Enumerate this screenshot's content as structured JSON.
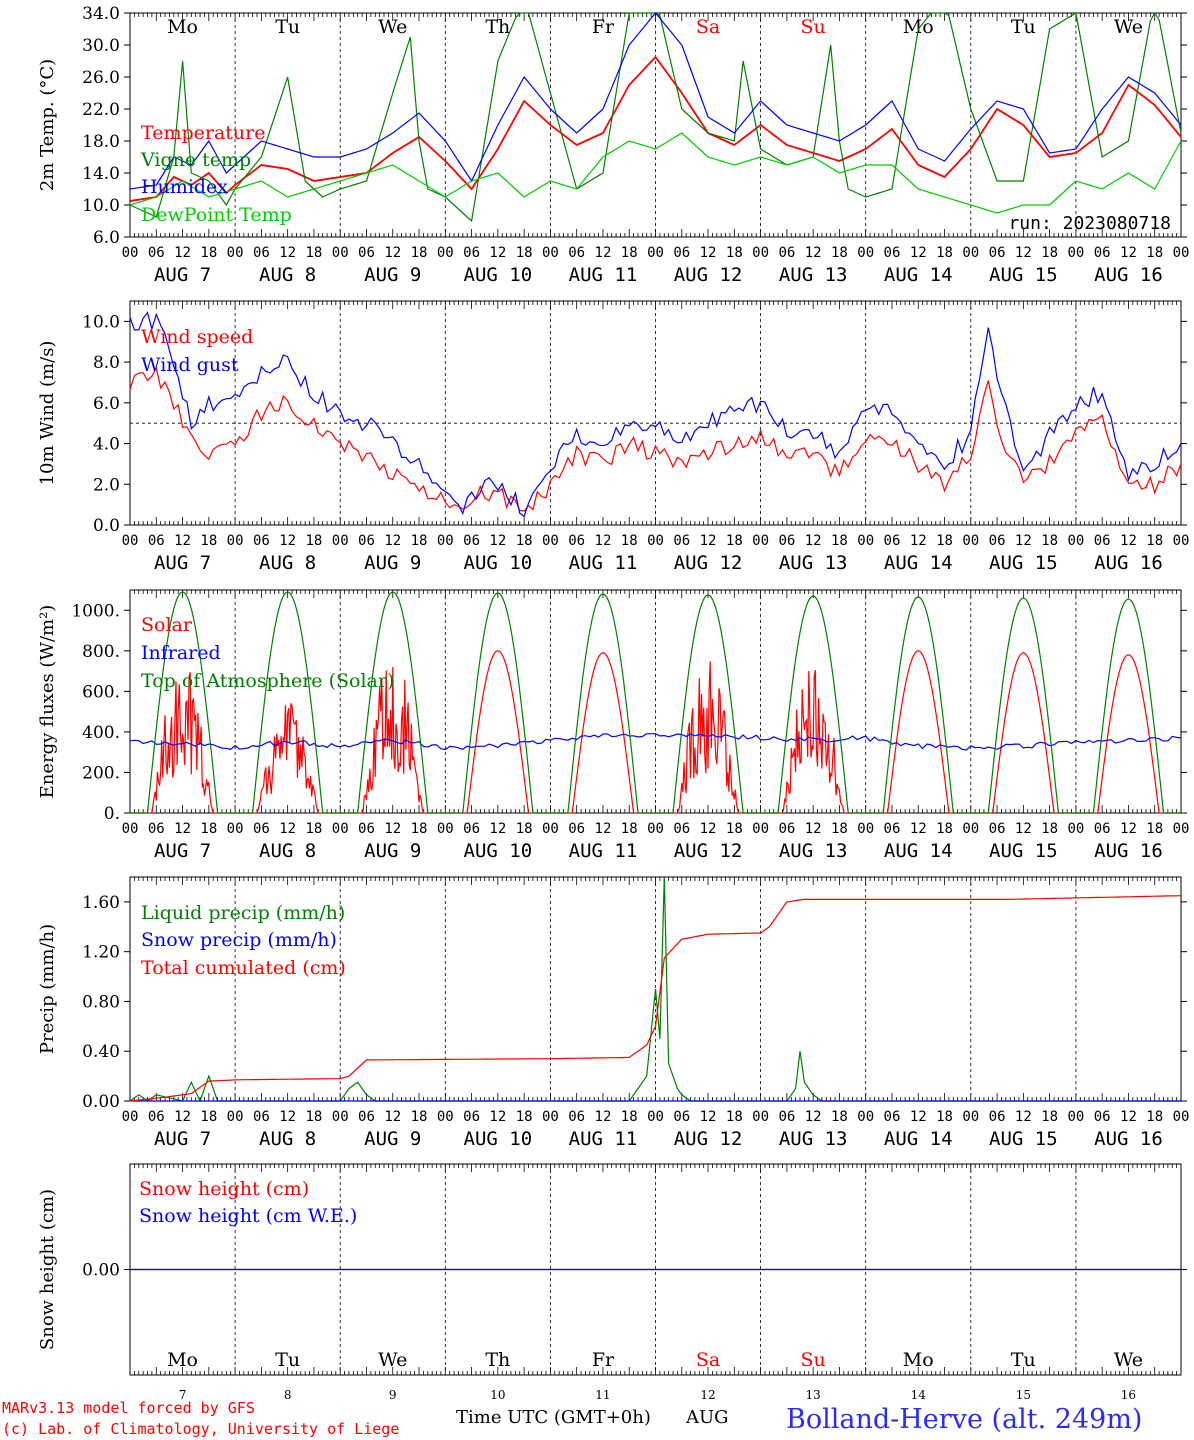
{
  "colors": {
    "red": "#ff0000",
    "blue": "#0000ff",
    "green": "#008000",
    "light_green": "#00cc00",
    "title_blue": "#2a2aff",
    "purple": "#7f007f"
  },
  "hour_ticks": [
    "00",
    "06",
    "12",
    "18"
  ],
  "day_hour_end": "00",
  "date_labels": [
    "AUG  7",
    "AUG  8",
    "AUG  9",
    "AUG 10",
    "AUG 11",
    "AUG 12",
    "AUG 13",
    "AUG 14",
    "AUG 15",
    "AUG 16"
  ],
  "weekdays": [
    "Mo",
    "Tu",
    "We",
    "Th",
    "Fr",
    "Sa",
    "Su",
    "Mo",
    "Tu",
    "We"
  ],
  "weekday_colors": [
    "#000000",
    "#000000",
    "#000000",
    "#000000",
    "#000000",
    "#ff0000",
    "#ff0000",
    "#000000",
    "#000000",
    "#000000"
  ],
  "bottom_day_numbers": [
    "7",
    "8",
    "9",
    "10",
    "11",
    "12",
    "13",
    "14",
    "15",
    "16"
  ],
  "x_axis_title": "Time UTC (GMT+0h)",
  "x_axis_month": "AUG",
  "footer": {
    "credit_line1": "MARv3.13 model forced by GFS",
    "credit_line2": "(c) Lab. of Climatology, University of Liege",
    "station": "Bolland-Herve (alt. 249m)"
  },
  "chart_data": [
    {
      "type": "line",
      "ylabel": "2m Temp. (°C)",
      "ylim": [
        6,
        34
      ],
      "yticks": [
        "34.0",
        "30.0",
        "26.0",
        "22.0",
        "18.0",
        "14.0",
        "10.0",
        "6.0"
      ],
      "annotation": "run: 2023080718",
      "x_unit": "hours since AUG 7 00 UTC",
      "legend": [
        "Temperature",
        "Vigne temp",
        "Humidex",
        "DewPoint Temp"
      ],
      "series": [
        {
          "name": "Temperature",
          "color": "#ff0000",
          "x": [
            0,
            6,
            10,
            14,
            18,
            22,
            24,
            30,
            36,
            42,
            48,
            54,
            60,
            66,
            72,
            78,
            84,
            90,
            96,
            102,
            108,
            114,
            120,
            126,
            132,
            138,
            144,
            150,
            156,
            162,
            168,
            174,
            180,
            186,
            192,
            198,
            204,
            210,
            216,
            222,
            228,
            234,
            240
          ],
          "values": [
            10.5,
            11,
            13.5,
            12.5,
            14,
            11.5,
            12.5,
            15,
            14.5,
            13,
            13.5,
            14,
            16.5,
            18.5,
            15.5,
            12,
            17,
            23,
            20,
            17.5,
            19,
            25,
            28.5,
            24,
            19,
            17.5,
            20,
            17.5,
            16.5,
            15.5,
            17,
            19.5,
            15,
            13.5,
            17,
            22,
            20,
            16,
            16.5,
            19,
            25,
            22.5,
            18.5
          ]
        },
        {
          "name": "Vigne temp",
          "color": "#008000",
          "x": [
            0,
            6,
            10,
            12,
            14,
            18,
            22,
            24,
            30,
            36,
            40,
            44,
            48,
            54,
            60,
            64,
            66,
            68,
            72,
            78,
            84,
            90,
            96,
            102,
            108,
            114,
            120,
            126,
            132,
            138,
            140,
            144,
            150,
            156,
            160,
            162,
            164,
            168,
            174,
            180,
            186,
            192,
            198,
            204,
            210,
            216,
            222,
            228,
            234,
            240
          ],
          "values": [
            10,
            8.5,
            16,
            28,
            14,
            13,
            10,
            12,
            16,
            26,
            13,
            11,
            12,
            13,
            24,
            31,
            18,
            12,
            11,
            8,
            28,
            36,
            24,
            12,
            14,
            34,
            36,
            22,
            19,
            18,
            28,
            17,
            15,
            16,
            30,
            18,
            12,
            11,
            12,
            32,
            36,
            22,
            13,
            13,
            32,
            34,
            16,
            18,
            36,
            19
          ]
        },
        {
          "name": "Humidex",
          "color": "#0000ff",
          "x": [
            0,
            6,
            10,
            14,
            18,
            22,
            24,
            30,
            36,
            42,
            48,
            54,
            60,
            66,
            72,
            78,
            84,
            90,
            96,
            102,
            108,
            114,
            120,
            126,
            132,
            138,
            144,
            150,
            156,
            162,
            168,
            174,
            180,
            186,
            192,
            198,
            204,
            210,
            216,
            222,
            228,
            234,
            240
          ],
          "values": [
            12,
            12.5,
            16,
            15,
            18,
            14,
            15,
            18,
            17,
            16,
            16,
            17,
            19,
            21.5,
            18,
            13,
            20,
            26,
            22,
            19,
            22,
            30,
            34,
            30,
            21,
            19,
            23,
            20,
            19,
            18,
            20,
            23,
            17,
            15.5,
            19.5,
            23,
            22,
            16.5,
            17,
            22,
            26,
            24,
            20
          ]
        },
        {
          "name": "DewPoint Temp",
          "color": "#00cc00",
          "x": [
            0,
            6,
            12,
            18,
            24,
            30,
            36,
            42,
            48,
            54,
            60,
            66,
            72,
            78,
            84,
            90,
            96,
            102,
            108,
            114,
            120,
            126,
            132,
            138,
            144,
            150,
            156,
            162,
            168,
            174,
            180,
            186,
            192,
            198,
            204,
            210,
            216,
            222,
            228,
            234,
            240
          ],
          "values": [
            10,
            11,
            13,
            11,
            12,
            13,
            11,
            12,
            13,
            14,
            15,
            13,
            11,
            13,
            14,
            11,
            13,
            12,
            16,
            18,
            17,
            19,
            16,
            15,
            16,
            15,
            16,
            14,
            15,
            15,
            12,
            11,
            10,
            9,
            10,
            10,
            13,
            12,
            14,
            12,
            18
          ]
        }
      ]
    },
    {
      "type": "line",
      "ylabel": "10m Wind (m/s)",
      "ylim": [
        0,
        11
      ],
      "yticks": [
        "10.0",
        "8.0",
        "6.0",
        "4.0",
        "2.0",
        "0.0"
      ],
      "reference_line": 5,
      "legend": [
        "Wind speed",
        "Wind gust"
      ],
      "series": [
        {
          "name": "Wind speed",
          "color": "#ff0000",
          "x": [
            0,
            6,
            10,
            14,
            18,
            24,
            30,
            36,
            42,
            48,
            54,
            60,
            66,
            72,
            76,
            80,
            84,
            90,
            96,
            102,
            108,
            114,
            120,
            126,
            132,
            138,
            144,
            150,
            156,
            162,
            168,
            174,
            180,
            186,
            192,
            196,
            198,
            204,
            210,
            216,
            222,
            228,
            234,
            240
          ],
          "values": [
            7,
            7.5,
            6,
            4,
            3.5,
            4,
            5.5,
            6,
            5,
            4,
            3.5,
            2.5,
            2,
            1,
            0.5,
            1.5,
            1.5,
            0.5,
            2,
            3.5,
            3,
            4,
            3.5,
            3,
            3.5,
            4,
            4.5,
            3.5,
            3.5,
            2.5,
            4,
            4,
            3,
            2,
            3.5,
            7,
            5,
            2,
            3,
            4.5,
            5,
            2,
            2,
            3
          ]
        },
        {
          "name": "Wind gust",
          "color": "#0000ff",
          "x": [
            0,
            6,
            10,
            14,
            18,
            24,
            30,
            36,
            42,
            48,
            54,
            60,
            66,
            72,
            76,
            80,
            84,
            90,
            96,
            102,
            108,
            114,
            120,
            126,
            132,
            138,
            144,
            150,
            156,
            162,
            168,
            174,
            180,
            186,
            192,
            196,
            198,
            204,
            210,
            216,
            222,
            228,
            234,
            240
          ],
          "values": [
            10,
            10,
            8,
            5,
            6,
            6,
            7.5,
            8,
            6.5,
            5.5,
            5,
            4,
            3,
            1.5,
            0.7,
            2,
            2,
            0.8,
            3,
            4.5,
            4,
            5,
            5,
            4,
            5,
            5.5,
            6,
            4.5,
            4.5,
            3.5,
            5.5,
            5.5,
            4,
            3,
            4.5,
            10,
            7,
            2.5,
            4.5,
            6,
            6.5,
            2.5,
            3,
            4
          ]
        }
      ]
    },
    {
      "type": "line",
      "ylabel": "Energy fluxes (W/m²)",
      "ylim": [
        0,
        1100
      ],
      "yticks": [
        "1000.",
        "800.",
        "600.",
        "400.",
        "200.",
        "0."
      ],
      "legend": [
        "Solar",
        "Infrared",
        "Top of Atmosphere (Solar)"
      ],
      "series": [
        {
          "name": "Solar",
          "color": "#ff0000",
          "daily_peak": [
            780,
            560,
            820,
            800,
            790,
            780,
            790,
            800,
            790,
            780
          ],
          "day_start_hour": 5,
          "day_end_hour": 19
        },
        {
          "name": "Infrared",
          "color": "#0000ff",
          "x": [
            0,
            12,
            24,
            36,
            48,
            60,
            72,
            84,
            96,
            108,
            120,
            132,
            144,
            156,
            168,
            180,
            192,
            204,
            216,
            228,
            240
          ],
          "values": [
            350,
            340,
            320,
            350,
            330,
            360,
            320,
            330,
            360,
            380,
            390,
            380,
            370,
            360,
            370,
            330,
            320,
            330,
            350,
            360,
            370
          ]
        },
        {
          "name": "Top of Atmosphere (Solar)",
          "color": "#008000",
          "daily_peak": [
            1090,
            1090,
            1090,
            1085,
            1080,
            1075,
            1070,
            1065,
            1060,
            1055
          ],
          "day_start_hour": 4,
          "day_end_hour": 20
        }
      ]
    },
    {
      "type": "line",
      "ylabel": "Precip (mm/h)",
      "ylim": [
        0,
        1.8
      ],
      "yticks": [
        "1.60",
        "1.20",
        "0.80",
        "0.40",
        "0.00"
      ],
      "legend": [
        "Liquid precip (mm/h)",
        "Snow precip (mm/h)",
        "Total cumulated (cm)"
      ],
      "series": [
        {
          "name": "Liquid precip (mm/h)",
          "color": "#008000",
          "x": [
            0,
            2,
            4,
            6,
            12,
            14,
            16,
            18,
            20,
            24,
            48,
            50,
            52,
            54,
            56,
            60,
            96,
            114,
            116,
            118,
            120,
            121,
            122,
            123,
            124,
            125,
            126,
            128,
            130,
            132,
            150,
            152,
            153,
            154,
            156,
            158,
            240
          ],
          "values": [
            0,
            0.05,
            0,
            0.05,
            0,
            0.15,
            0,
            0.2,
            0,
            0,
            0,
            0.1,
            0.15,
            0.05,
            0,
            0,
            0,
            0,
            0.1,
            0.2,
            0.9,
            0.5,
            1.8,
            0.3,
            0.2,
            0.1,
            0.05,
            0,
            0,
            0,
            0,
            0.1,
            0.4,
            0.15,
            0.05,
            0,
            0
          ]
        },
        {
          "name": "Snow precip (mm/h)",
          "color": "#0000ff",
          "x": [
            0,
            240
          ],
          "values": [
            0,
            0
          ]
        },
        {
          "name": "Total cumulated (cm)",
          "color": "#ff0000",
          "x": [
            0,
            8,
            14,
            18,
            24,
            48,
            50,
            54,
            96,
            114,
            118,
            120,
            122,
            126,
            132,
            144,
            146,
            150,
            154,
            160,
            200,
            240
          ],
          "values": [
            0,
            0.03,
            0.06,
            0.16,
            0.17,
            0.18,
            0.2,
            0.33,
            0.34,
            0.35,
            0.45,
            0.6,
            1.15,
            1.3,
            1.34,
            1.35,
            1.4,
            1.6,
            1.62,
            1.62,
            1.62,
            1.65
          ]
        }
      ]
    },
    {
      "type": "line",
      "ylabel": "Snow height (cm)",
      "yticks": [
        "0.00"
      ],
      "legend": [
        "Snow height (cm)",
        "Snow height (cm W.E.)"
      ],
      "series": [
        {
          "name": "Snow height (cm)",
          "color": "#ff0000",
          "x": [
            0,
            240
          ],
          "values": [
            0,
            0
          ]
        },
        {
          "name": "Snow height (cm W.E.)",
          "color": "#0000ff",
          "x": [
            0,
            240
          ],
          "values": [
            0,
            0
          ]
        }
      ]
    }
  ]
}
